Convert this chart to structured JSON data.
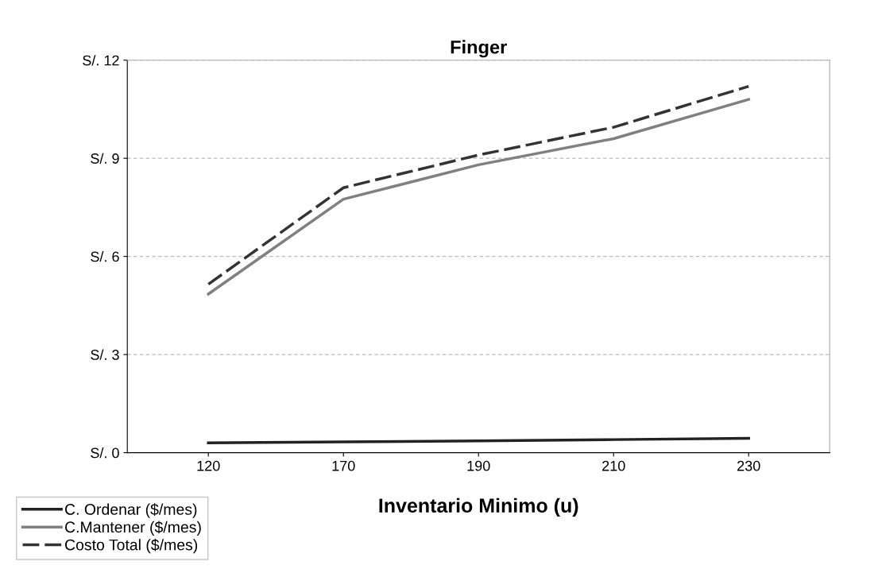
{
  "chart_data": {
    "type": "line",
    "title": "Finger",
    "xlabel": "Inventario Minimo (u)",
    "categories": [
      "120",
      "170",
      "190",
      "210",
      "230"
    ],
    "series": [
      {
        "name": "C. Ordenar ($/mes)",
        "color": "#222222",
        "line_style": "solid",
        "values": [
          0.3,
          0.33,
          0.36,
          0.4,
          0.44
        ]
      },
      {
        "name": "C.Mantener ($/mes)",
        "color": "#808080",
        "line_style": "solid",
        "values": [
          4.85,
          7.75,
          8.8,
          9.6,
          10.8
        ]
      },
      {
        "name": "Costo Total ($/mes)",
        "color": "#333333",
        "line_style": "dashed",
        "values": [
          5.15,
          8.1,
          9.1,
          9.95,
          11.2
        ]
      }
    ],
    "ylim": [
      0,
      12
    ],
    "yticks": [
      {
        "value": 0,
        "label": "S/. 0"
      },
      {
        "value": 3,
        "label": "S/. 3"
      },
      {
        "value": 6,
        "label": "S/. 6"
      },
      {
        "value": 9,
        "label": "S/. 9"
      },
      {
        "value": 12,
        "label": "S/. 12"
      }
    ],
    "grid": "y",
    "legend": "bottom left",
    "marker": "none"
  }
}
